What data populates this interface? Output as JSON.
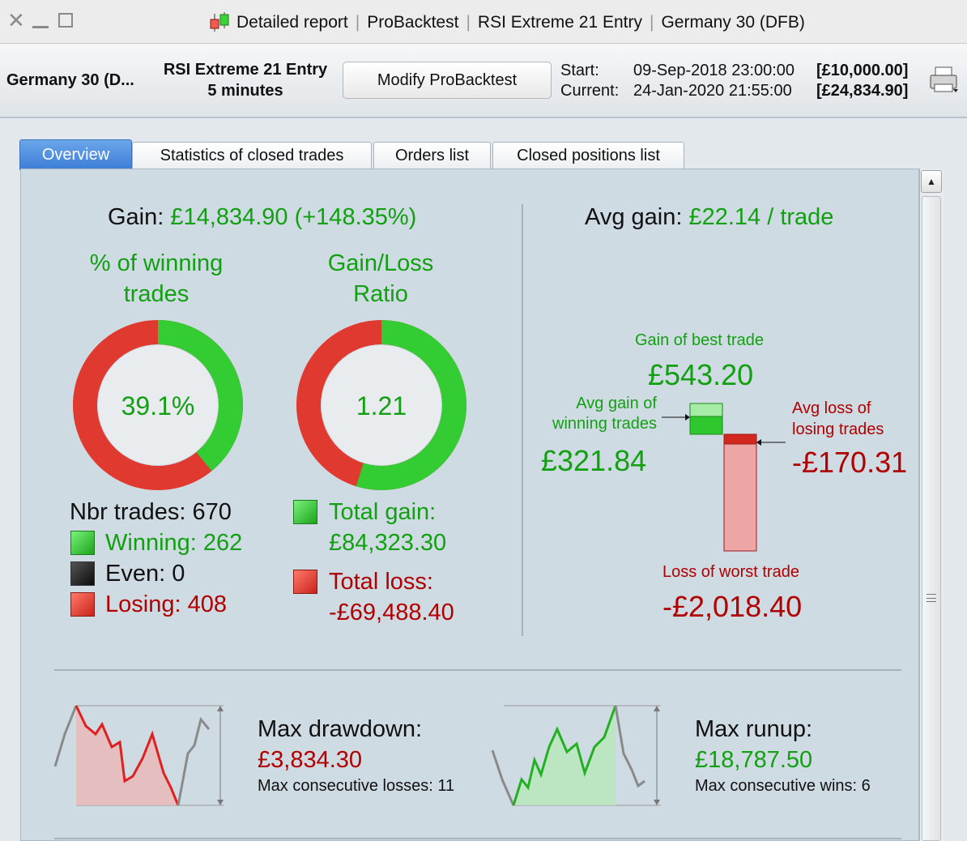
{
  "window": {
    "title_parts": [
      "Detailed report",
      "ProBacktest",
      "RSI Extreme 21 Entry",
      "Germany 30 (DFB)"
    ]
  },
  "header": {
    "instrument": "Germany 30 (D...",
    "strategy": "RSI Extreme 21 Entry",
    "timeframe": "5 minutes",
    "modify_label": "Modify ProBacktest",
    "start_label": "Start:",
    "start_date": "09-Sep-2018 23:00:00",
    "start_value": "[£10,000.00]",
    "current_label": "Current:",
    "current_date": "24-Jan-2020 21:55:00",
    "current_value": "[£24,834.90]"
  },
  "tabs": [
    {
      "label": "Overview",
      "active": true
    },
    {
      "label": "Statistics of closed trades",
      "active": false
    },
    {
      "label": "Orders list",
      "active": false
    },
    {
      "label": "Closed positions list",
      "active": false
    }
  ],
  "overview": {
    "gain_label": "Gain:",
    "gain_value": "£14,834.90 (+148.35%)",
    "winning_title_1": "% of winning",
    "winning_title_2": "trades",
    "winning_pct_text": "39.1%",
    "winning_fraction": 0.391,
    "ratio_title_1": "Gain/Loss",
    "ratio_title_2": "Ratio",
    "ratio_text": "1.21",
    "ratio_gain_fraction": 0.548,
    "nbr_trades": "Nbr trades: 670",
    "winning": "Winning: 262",
    "even": "Even: 0",
    "losing": "Losing: 408",
    "total_gain_label": "Total gain:",
    "total_gain_value": "£84,323.30",
    "total_loss_label": "Total loss:",
    "total_loss_value": "-£69,488.40",
    "avg_gain_label": "Avg gain:",
    "avg_gain_value": "£22.14 / trade",
    "best_trade_label": "Gain of best trade",
    "best_trade_value": "£543.20",
    "avg_win_label_1": "Avg gain of",
    "avg_win_label_2": "winning trades",
    "avg_win_value": "£321.84",
    "avg_loss_label_1": "Avg loss of",
    "avg_loss_label_2": "losing trades",
    "avg_loss_value": "-£170.31",
    "worst_trade_label": "Loss of worst trade",
    "worst_trade_value": "-£2,018.40",
    "drawdown_label": "Max drawdown:",
    "drawdown_value": "£3,834.30",
    "consec_losses": "Max consecutive losses: 11",
    "runup_label": "Max runup:",
    "runup_value": "£18,787.50",
    "consec_wins": "Max consecutive wins: 6"
  },
  "colors": {
    "gain": "#12a012",
    "loss": "#b00000",
    "tab_active": "#3c7dd8"
  }
}
